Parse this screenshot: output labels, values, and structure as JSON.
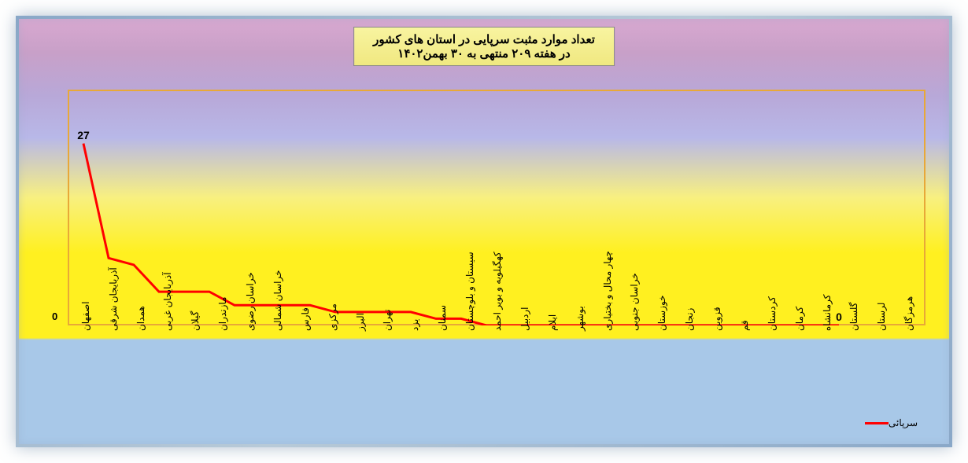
{
  "chart": {
    "type": "line",
    "title_line1": "تعداد موارد مثبت سرپایی در استان های کشور",
    "title_line2": "در هفته ۲۰۹ منتهی به ۳۰ بهمن۱۴۰۲",
    "categories": [
      "اصفهان",
      "آذربایجان شرقی",
      "همدان",
      "آذربایجان غربی",
      "گیلان",
      "مازندران",
      "خراسان رضوی",
      "خراسان شمالی",
      "فارس",
      "مرکزی",
      "البرز",
      "تهران",
      "یزد",
      "سمنان",
      "سیستان و بلوچستان",
      "کهگیلویه و بویر احمد",
      "اردبیل",
      "ایلام",
      "بوشهر",
      "چهار محال و بختیاری",
      "خراسان جنوبی",
      "خوزستان",
      "زنجان",
      "قزوین",
      "قم",
      "کردستان",
      "کرمان",
      "کرمانشاه",
      "گلستان",
      "لرستان",
      "هرمزگان"
    ],
    "values": [
      27,
      10,
      9,
      5,
      5,
      5,
      3,
      3,
      3,
      3,
      2,
      2,
      2,
      2,
      1,
      1,
      0,
      0,
      0,
      0,
      0,
      0,
      0,
      0,
      0,
      0,
      0,
      0,
      0,
      0,
      0
    ],
    "show_labels_at": {
      "0": "27",
      "30": "0"
    },
    "ylim": [
      0,
      35
    ],
    "y_tick_zero": "0",
    "line_color": "#ff0000",
    "line_width": 3,
    "plot_border_color": "#e8a838",
    "background_gradient": [
      "#d8a8d0",
      "#b8b8e8",
      "#f8f080",
      "#fff020",
      "#a8c8e8"
    ],
    "title_background": "#f0e880",
    "legend_label": "سرپائی",
    "legend_color": "#ff0000",
    "frame_color": "#8aa8c8",
    "title_fontsize": 15,
    "label_fontsize": 12
  }
}
